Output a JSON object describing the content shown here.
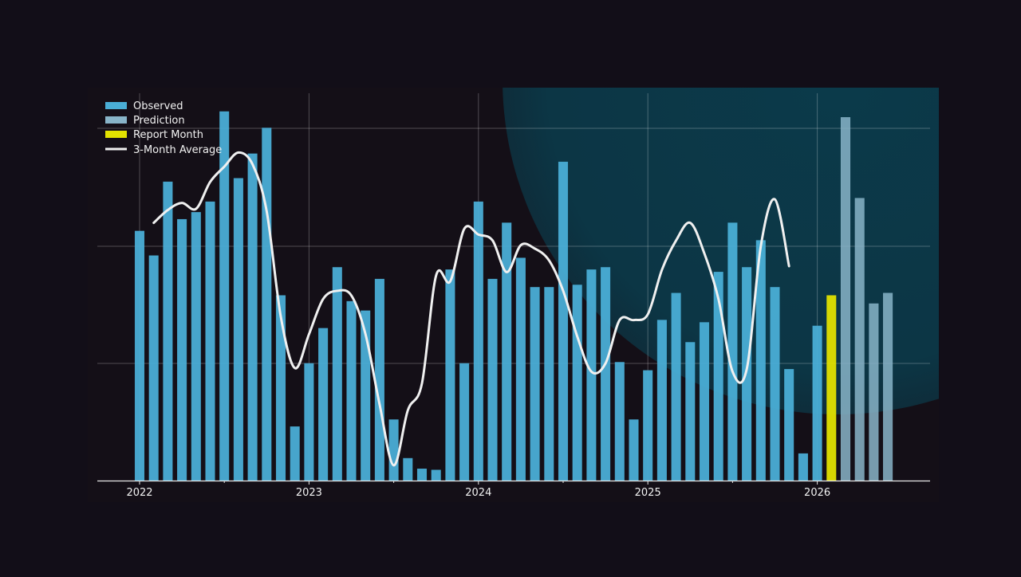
{
  "chart_data": {
    "type": "bar",
    "title": "",
    "xlabel": "",
    "ylabel": "",
    "x_ticks": [
      "2022",
      "2023",
      "2024",
      "2025",
      "2026"
    ],
    "ylim": [
      0,
      315
    ],
    "grid": true,
    "legend_position": "top-left",
    "legend": {
      "observed": "Observed",
      "prediction": "Prediction",
      "report_month": "Report Month",
      "average": "3-Month Average"
    },
    "colors": {
      "observed": "#4aaed6",
      "prediction": "#88b4c8",
      "report_month": "#e2e200",
      "average": "#f0f0f0",
      "background": "#120e18",
      "plot_background": "#140f17",
      "glow": "#0b3a4a"
    },
    "months": [
      "2022-01",
      "2022-02",
      "2022-03",
      "2022-04",
      "2022-05",
      "2022-06",
      "2022-07",
      "2022-08",
      "2022-09",
      "2022-10",
      "2022-11",
      "2022-12",
      "2023-01",
      "2023-02",
      "2023-03",
      "2023-04",
      "2023-05",
      "2023-06",
      "2023-07",
      "2023-08",
      "2023-09",
      "2023-10",
      "2023-11",
      "2023-12",
      "2024-01",
      "2024-02",
      "2024-03",
      "2024-04",
      "2024-05",
      "2024-06",
      "2024-07",
      "2024-08",
      "2024-09",
      "2024-10",
      "2024-11",
      "2024-12",
      "2025-01",
      "2025-02",
      "2025-03",
      "2025-04",
      "2025-05",
      "2025-06",
      "2025-07",
      "2025-08",
      "2025-09",
      "2025-10",
      "2025-11",
      "2025-12",
      "2026-01",
      "2026-02",
      "2026-03",
      "2026-04",
      "2026-05",
      "2026-06"
    ],
    "series": [
      {
        "name": "Observed",
        "values": [
          213,
          192,
          255,
          223,
          229,
          238,
          315,
          258,
          279,
          301,
          158,
          46,
          100,
          130,
          182,
          153,
          145,
          172,
          52,
          19,
          10,
          9,
          180,
          100,
          238,
          172,
          220,
          190,
          165,
          165,
          272,
          167,
          180,
          182,
          101,
          52,
          94,
          137,
          160,
          118,
          135,
          178,
          220,
          182,
          205,
          165,
          95,
          23,
          132
        ]
      },
      {
        "name": "Report Month",
        "values": [
          158
        ]
      },
      {
        "name": "Prediction",
        "values": [
          310,
          241,
          151,
          160
        ]
      },
      {
        "name": "3-Month Average",
        "values": [
          null,
          220,
          231,
          237,
          232,
          255,
          268,
          280,
          270,
          230,
          140,
          96,
          125,
          155,
          162,
          158,
          125,
          65,
          13,
          60,
          83,
          175,
          170,
          215,
          210,
          205,
          178,
          201,
          198,
          188,
          162,
          123,
          93,
          100,
          137,
          137,
          142,
          180,
          205,
          220,
          194,
          155,
          93,
          95,
          200,
          240,
          183
        ]
      }
    ]
  }
}
